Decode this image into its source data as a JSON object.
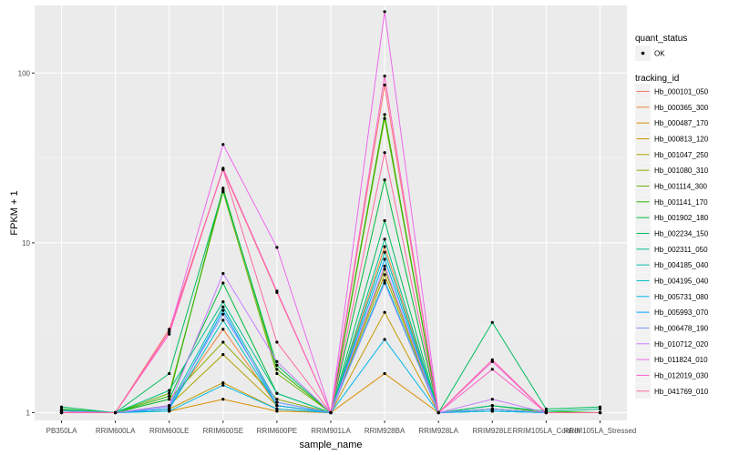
{
  "chart_data": {
    "type": "line",
    "xlabel": "sample_name",
    "ylabel": "FPKM + 1",
    "y_scale": "log10",
    "ylim": [
      0.9,
      250
    ],
    "y_ticks": [
      1,
      10,
      100
    ],
    "y_tick_labels": [
      "1",
      "10",
      "100"
    ],
    "grid": true,
    "legend_placement": "right",
    "categories": [
      "PB350LA",
      "RRIM600LA",
      "RRIM600LE",
      "RRIM600SE",
      "RRIM600PE",
      "RRIM901LA",
      "RRIM928BA",
      "RRIM928LA",
      "RRIM928LE",
      "RRIM105LA_Control",
      "RRIM105LA_Stressed"
    ],
    "shape_legend": {
      "title": "quant_status",
      "items": [
        "OK"
      ]
    },
    "color_legend_title": "tracking_id",
    "series": [
      {
        "name": "Hb_000101_050",
        "color": "#F8766D",
        "values": [
          1.0,
          1.0,
          3.1,
          27.0,
          5.1,
          1.0,
          85.0,
          1.0,
          2.0,
          1.0,
          1.0
        ]
      },
      {
        "name": "Hb_000365_300",
        "color": "#EC8239",
        "values": [
          1.02,
          1.0,
          1.1,
          3.1,
          1.1,
          1.0,
          9.5,
          1.0,
          1.05,
          1.0,
          1.0
        ]
      },
      {
        "name": "Hb_000487_170",
        "color": "#DB8E00",
        "values": [
          1.0,
          1.0,
          1.02,
          1.2,
          1.02,
          1.0,
          1.7,
          1.0,
          1.02,
          1.0,
          1.0
        ]
      },
      {
        "name": "Hb_000813_120",
        "color": "#C79800",
        "values": [
          1.0,
          1.0,
          1.05,
          1.5,
          1.05,
          1.0,
          3.9,
          1.0,
          1.05,
          1.0,
          1.0
        ]
      },
      {
        "name": "Hb_001047_250",
        "color": "#AFA200",
        "values": [
          1.0,
          1.0,
          1.1,
          2.2,
          1.1,
          1.0,
          6.5,
          1.0,
          1.05,
          1.0,
          1.0
        ]
      },
      {
        "name": "Hb_001080_310",
        "color": "#93AA00",
        "values": [
          1.03,
          1.0,
          1.2,
          2.6,
          1.2,
          1.0,
          7.0,
          1.0,
          1.05,
          1.0,
          1.0
        ]
      },
      {
        "name": "Hb_001114_300",
        "color": "#6EB200",
        "values": [
          1.02,
          1.0,
          1.3,
          20.0,
          1.7,
          1.0,
          54.0,
          1.0,
          1.1,
          1.0,
          1.0
        ]
      },
      {
        "name": "Hb_001141_170",
        "color": "#2CB600",
        "values": [
          1.05,
          1.0,
          1.25,
          21.0,
          1.8,
          1.0,
          57.0,
          1.0,
          1.1,
          1.02,
          1.0
        ]
      },
      {
        "name": "Hb_001902_180",
        "color": "#00BA38",
        "values": [
          1.03,
          1.0,
          1.2,
          5.8,
          1.3,
          1.0,
          23.5,
          1.0,
          1.05,
          1.0,
          1.0
        ]
      },
      {
        "name": "Hb_002234_150",
        "color": "#00BD5C",
        "values": [
          1.08,
          1.0,
          1.7,
          20.5,
          1.9,
          1.0,
          13.5,
          1.0,
          3.4,
          1.05,
          1.08
        ]
      },
      {
        "name": "Hb_002311_050",
        "color": "#00C08B",
        "values": [
          1.04,
          1.0,
          1.35,
          4.5,
          1.3,
          1.0,
          10.5,
          1.0,
          1.1,
          1.02,
          1.05
        ]
      },
      {
        "name": "Hb_004185_040",
        "color": "#00C0B0",
        "values": [
          1.02,
          1.0,
          1.1,
          4.2,
          1.15,
          1.0,
          8.8,
          1.0,
          1.05,
          1.0,
          1.0
        ]
      },
      {
        "name": "Hb_004195_040",
        "color": "#00BFC4",
        "values": [
          1.0,
          1.0,
          1.05,
          3.5,
          1.1,
          1.0,
          6.0,
          1.0,
          1.02,
          1.0,
          1.0
        ]
      },
      {
        "name": "Hb_005731_080",
        "color": "#00B8E7",
        "values": [
          1.0,
          1.0,
          1.02,
          1.45,
          1.05,
          1.0,
          2.7,
          1.0,
          1.02,
          1.0,
          1.0
        ]
      },
      {
        "name": "Hb_005993_070",
        "color": "#00A9FF",
        "values": [
          1.0,
          1.0,
          1.05,
          4.0,
          1.1,
          1.0,
          8.0,
          1.0,
          1.05,
          1.0,
          1.0
        ]
      },
      {
        "name": "Hb_006478_190",
        "color": "#8494FF",
        "values": [
          1.0,
          1.0,
          1.08,
          3.8,
          1.15,
          1.0,
          5.8,
          1.0,
          1.05,
          1.0,
          1.0
        ]
      },
      {
        "name": "Hb_010712_020",
        "color": "#C77CFF",
        "values": [
          1.02,
          1.0,
          1.1,
          6.6,
          2.0,
          1.0,
          7.3,
          1.0,
          1.2,
          1.0,
          1.0
        ]
      },
      {
        "name": "Hb_011824_010",
        "color": "#ED68ED",
        "values": [
          1.0,
          1.0,
          3.0,
          38.0,
          9.4,
          1.0,
          230.0,
          1.0,
          2.0,
          1.0,
          1.0
        ]
      },
      {
        "name": "Hb_012019_030",
        "color": "#FF61CC",
        "values": [
          1.0,
          1.0,
          2.9,
          27.5,
          5.2,
          1.0,
          96.0,
          1.0,
          1.8,
          1.0,
          1.0
        ]
      },
      {
        "name": "Hb_041769_010",
        "color": "#FF67A4",
        "values": [
          1.0,
          1.0,
          3.0,
          27.0,
          2.6,
          1.0,
          34.0,
          1.0,
          2.05,
          1.0,
          1.0
        ]
      }
    ]
  }
}
